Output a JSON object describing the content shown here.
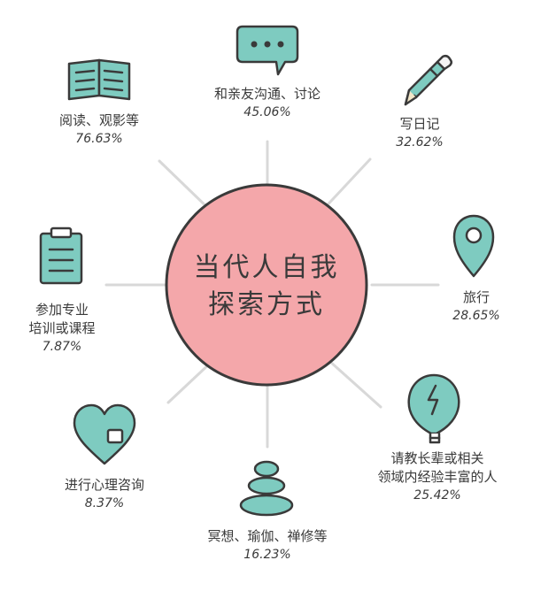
{
  "center": {
    "line1": "当代人自我",
    "line2": "探索方式",
    "color": "#f2a6a9"
  },
  "icon_color": "#7ecbc0",
  "items": [
    {
      "icon": "chat-bubble-icon",
      "line1": "和亲友沟通、讨论",
      "line2": "",
      "percent": "45.06%",
      "value": 45.06
    },
    {
      "icon": "pencil-icon",
      "line1": "写日记",
      "line2": "",
      "percent": "32.62%",
      "value": 32.62
    },
    {
      "icon": "map-pin-icon",
      "line1": "旅行",
      "line2": "",
      "percent": "28.65%",
      "value": 28.65
    },
    {
      "icon": "lightbulb-icon",
      "line1": "请教长辈或相关",
      "line2": "领域内经验丰富的人",
      "percent": "25.42%",
      "value": 25.42
    },
    {
      "icon": "stacked-stones-icon",
      "line1": "冥想、瑜伽、禅修等",
      "line2": "",
      "percent": "16.23%",
      "value": 16.23
    },
    {
      "icon": "heart-icon",
      "line1": "进行心理咨询",
      "line2": "",
      "percent": "8.37%",
      "value": 8.37
    },
    {
      "icon": "clipboard-icon",
      "line1": "参加专业",
      "line2": "培训或课程",
      "percent": "7.87%",
      "value": 7.87
    },
    {
      "icon": "open-book-icon",
      "line1": "阅读、观影等",
      "line2": "",
      "percent": "76.63%",
      "value": 76.63
    }
  ]
}
